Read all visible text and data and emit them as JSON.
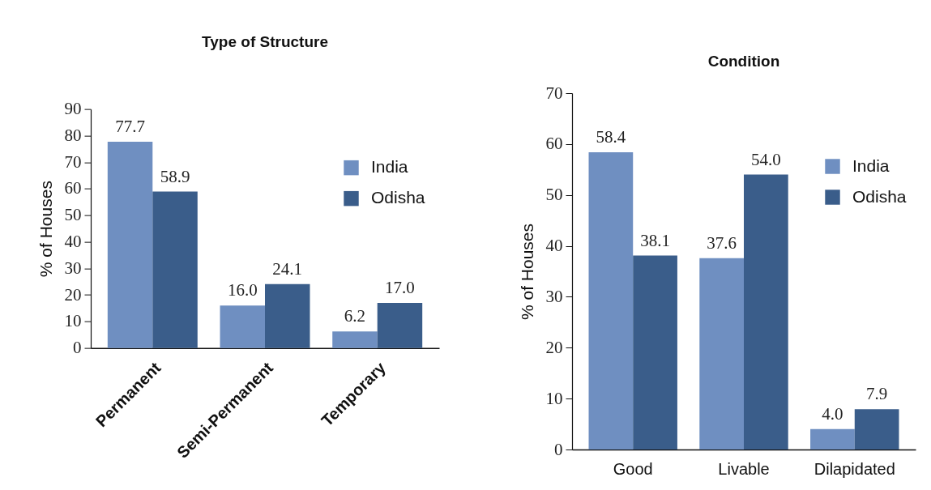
{
  "chart_data": [
    {
      "type": "bar",
      "title": "Type of Structure",
      "ylabel": "% of Houses",
      "categories": [
        "Permanent",
        "Semi-Permanent",
        "Temporary"
      ],
      "series": [
        {
          "name": "India",
          "color": "#6f8fc1",
          "values": [
            77.7,
            16.0,
            6.2
          ],
          "value_labels": [
            "77.7",
            "16.0",
            "6.2"
          ]
        },
        {
          "name": "Odisha",
          "color": "#3a5d8a",
          "values": [
            58.9,
            24.1,
            17.0
          ],
          "value_labels": [
            "58.9",
            "24.1",
            "17.0"
          ]
        }
      ],
      "ylim": [
        0,
        90
      ],
      "yticks": [
        0,
        10,
        20,
        30,
        40,
        50,
        60,
        70,
        80,
        90
      ],
      "legend": "top right"
    },
    {
      "type": "bar",
      "title": "Condition",
      "ylabel": "% of Houses",
      "categories": [
        "Good",
        "Livable",
        "Dilapidated"
      ],
      "series": [
        {
          "name": "India",
          "color": "#6f8fc1",
          "values": [
            58.4,
            37.6,
            4.0
          ],
          "value_labels": [
            "58.4",
            "37.6",
            "4.0"
          ]
        },
        {
          "name": "Odisha",
          "color": "#3a5d8a",
          "values": [
            38.1,
            54.0,
            7.9
          ],
          "value_labels": [
            "38.1",
            "54.0",
            "7.9"
          ]
        }
      ],
      "ylim": [
        0,
        70
      ],
      "yticks": [
        0,
        10,
        20,
        30,
        40,
        50,
        60,
        70
      ],
      "legend": "top right"
    }
  ]
}
